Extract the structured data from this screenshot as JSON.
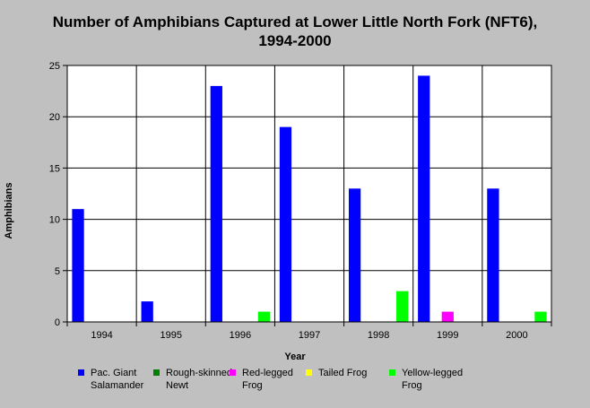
{
  "chart_data": {
    "type": "bar",
    "title_lines": [
      "Number of Amphibians Captured at Lower Little North Fork (NFT6),",
      "1994-2000"
    ],
    "xlabel": "Year",
    "ylabel": "Amphibians",
    "ylim": [
      0,
      25
    ],
    "yticks": [
      0,
      5,
      10,
      15,
      20,
      25
    ],
    "grid": true,
    "legend_position": "bottom",
    "categories": [
      "1994",
      "1995",
      "1996",
      "1997",
      "1998",
      "1999",
      "2000"
    ],
    "series": [
      {
        "name": "Pac. Giant\nSalamander",
        "color": "#0000ff",
        "values": [
          11,
          2,
          23,
          19,
          13,
          24,
          13
        ]
      },
      {
        "name": "Rough-skinned\nNewt",
        "color": "#008000",
        "values": [
          0,
          0,
          0,
          0,
          0,
          0,
          0
        ]
      },
      {
        "name": "Red-legged\nFrog",
        "color": "#ff00ff",
        "values": [
          0,
          0,
          0,
          0,
          0,
          1,
          0
        ]
      },
      {
        "name": "Tailed Frog",
        "color": "#ffff00",
        "values": [
          0,
          0,
          0,
          0,
          0,
          0,
          0
        ]
      },
      {
        "name": "Yellow-legged\nFrog",
        "color": "#00ff00",
        "values": [
          0,
          0,
          1,
          0,
          3,
          0,
          1
        ]
      }
    ]
  }
}
